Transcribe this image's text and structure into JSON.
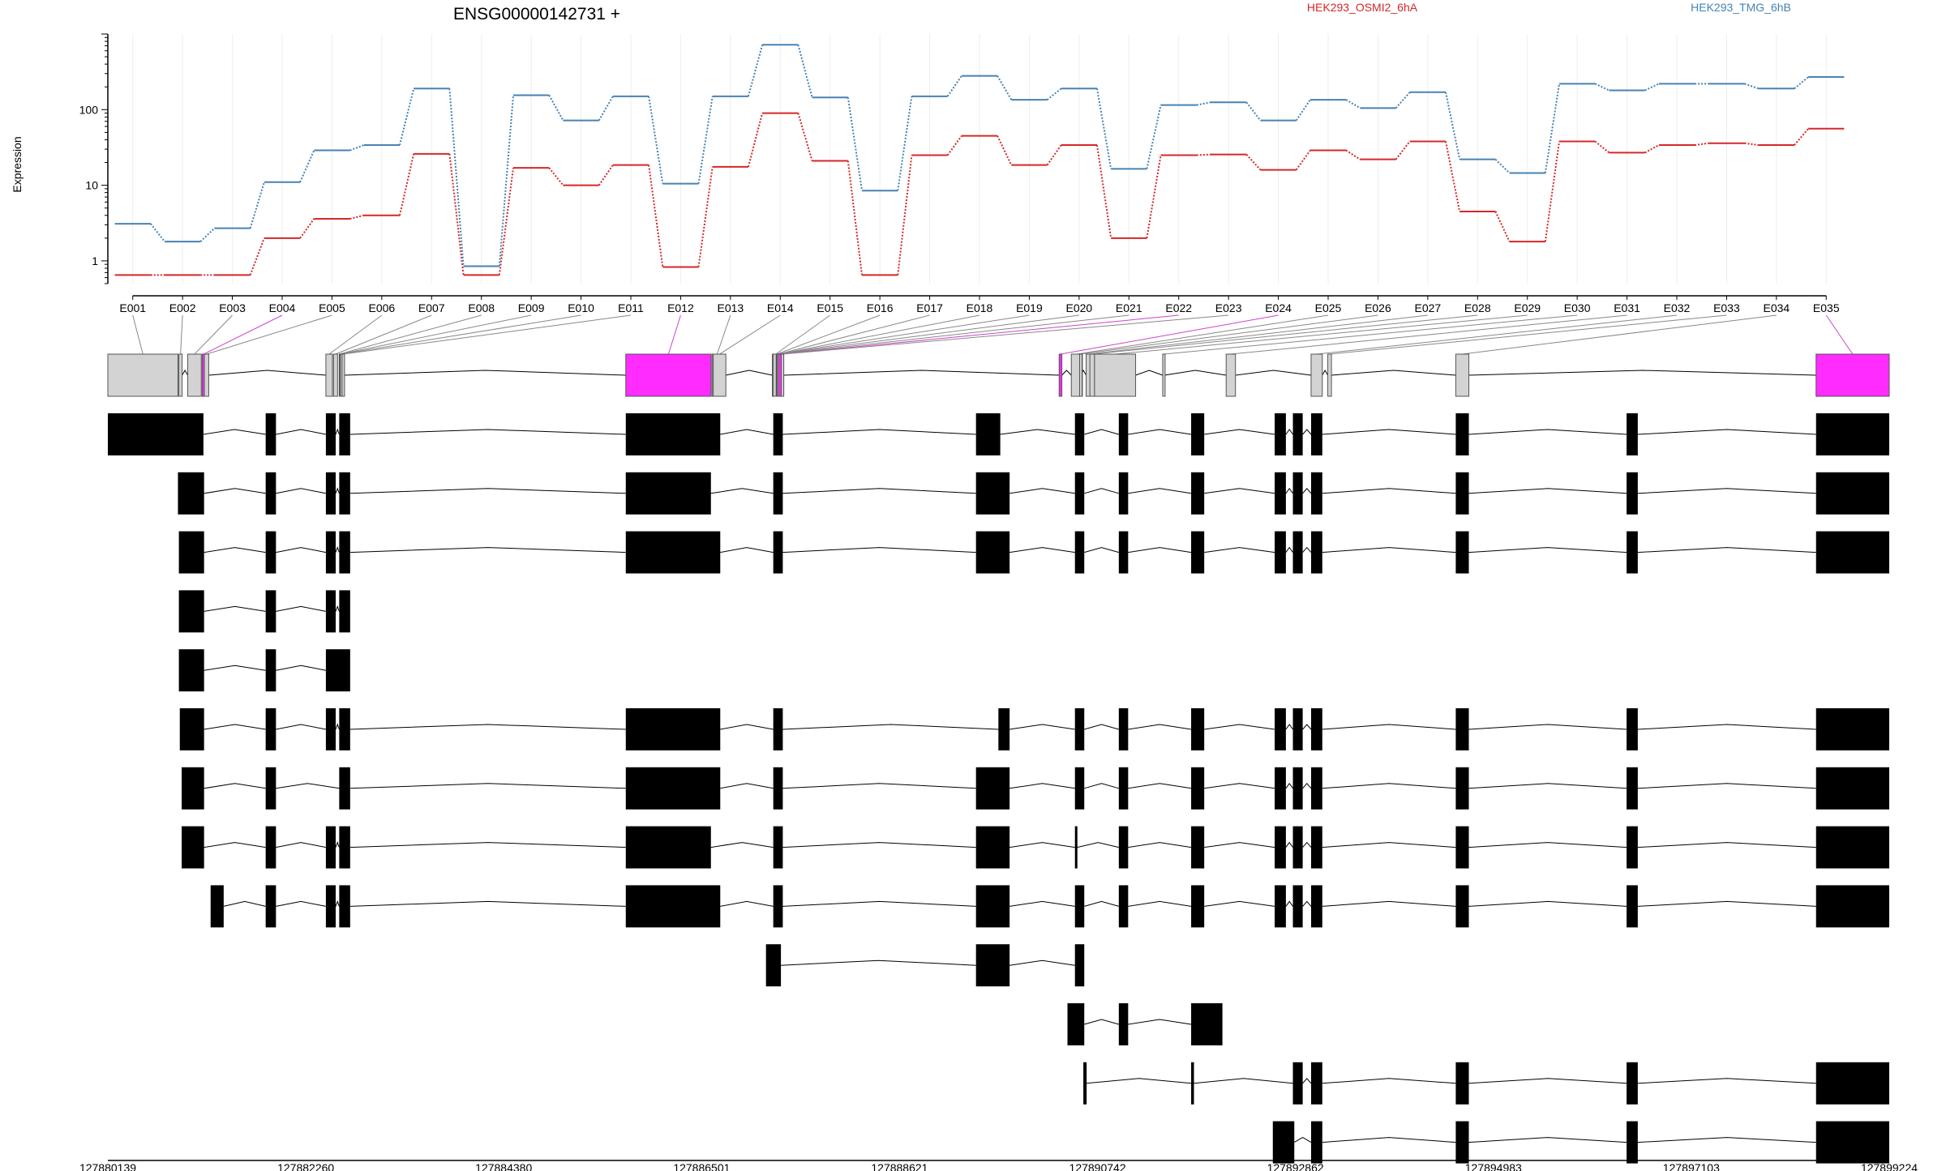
{
  "chart_data": {
    "type": "line",
    "title": "ENSG00000142731 +",
    "ylabel": "Expression",
    "yscale": "log",
    "ylim": [
      0.5,
      1000
    ],
    "yticks": [
      "1",
      "10",
      "100"
    ],
    "grid": true,
    "legend_position": "top",
    "x": [
      "E001",
      "E002",
      "E003",
      "E004",
      "E005",
      "E006",
      "E007",
      "E008",
      "E009",
      "E010",
      "E011",
      "E012",
      "E013",
      "E014",
      "E015",
      "E016",
      "E017",
      "E018",
      "E019",
      "E020",
      "E021",
      "E022",
      "E023",
      "E024",
      "E025",
      "E026",
      "E027",
      "E028",
      "E029",
      "E030",
      "E031",
      "E032",
      "E033",
      "E034",
      "E035"
    ],
    "series": [
      {
        "name": "HEK293_OSMI2_6hA",
        "color": "#d62728",
        "values": [
          0.65,
          0.65,
          0.65,
          2.0,
          3.6,
          4.0,
          26,
          0.65,
          17,
          10,
          18.5,
          0.83,
          17.5,
          90,
          21,
          0.65,
          25,
          45,
          18.5,
          34,
          2.0,
          25,
          25.5,
          16,
          29,
          22,
          38,
          4.5,
          1.8,
          38,
          27,
          34,
          36,
          34,
          56
        ]
      },
      {
        "name": "HEK293_TMG_6hB",
        "color": "#4682b4",
        "values": [
          3.1,
          1.8,
          2.7,
          11,
          29,
          34,
          190,
          0.85,
          155,
          72,
          150,
          10.5,
          150,
          720,
          145,
          8.5,
          150,
          280,
          135,
          190,
          16.5,
          115,
          125,
          72,
          135,
          105,
          170,
          22,
          14.5,
          220,
          180,
          220,
          220,
          190,
          270
        ]
      }
    ],
    "exons": {
      "labels": [
        "E001",
        "E002",
        "E003",
        "E004",
        "E005",
        "E006",
        "E007",
        "E008",
        "E009",
        "E010",
        "E011",
        "E012",
        "E013",
        "E014",
        "E015",
        "E016",
        "E017",
        "E018",
        "E019",
        "E020",
        "E021",
        "E022",
        "E023",
        "E024",
        "E025",
        "E026",
        "E027",
        "E028",
        "E029",
        "E030",
        "E031",
        "E032",
        "E033",
        "E034",
        "E035"
      ],
      "starts": [
        127880139,
        127880900,
        127880995,
        127881150,
        127881173,
        127882475,
        127882557,
        127882618,
        127882623,
        127882631,
        127882649,
        127885688,
        127886613,
        127886625,
        127887258,
        127887268,
        127887299,
        127887302,
        127887308,
        127887308,
        127887310,
        127887323,
        127887354,
        127890331,
        127890461,
        127890550,
        127890620,
        127890660,
        127890710,
        127891440,
        127892120,
        127893030,
        127893209,
        127894580,
        127898440
      ],
      "ends": [
        127880890,
        127880935,
        127881140,
        127881180,
        127881220,
        127882545,
        127882600,
        127882620,
        127882625,
        127882640,
        127882670,
        127886602,
        127886720,
        127886760,
        127887330,
        127887345,
        127887345,
        127887345,
        127887310,
        127887315,
        127887350,
        127887380,
        127887380,
        127890360,
        127890580,
        127890560,
        127890680,
        127890710,
        127891150,
        127891460,
        127892220,
        127893150,
        127893248,
        127894720,
        127899224
      ],
      "highlight": [
        false,
        false,
        false,
        true,
        false,
        false,
        false,
        false,
        false,
        false,
        false,
        true,
        false,
        false,
        false,
        false,
        false,
        false,
        false,
        false,
        false,
        true,
        false,
        true,
        false,
        false,
        false,
        false,
        false,
        false,
        false,
        false,
        false,
        false,
        true
      ],
      "flat_color": "#d3d3d3",
      "highlight_color": "#ff2bff"
    },
    "transcripts": [
      [
        [
          127880139,
          127881163
        ],
        [
          127881830,
          127881940
        ],
        [
          127882475,
          127882580
        ],
        [
          127882618,
          127882735
        ],
        [
          127885688,
          127886700
        ],
        [
          127887268,
          127887370
        ],
        [
          127889440,
          127889700
        ],
        [
          127890500,
          127890600
        ],
        [
          127890970,
          127891070
        ],
        [
          127891745,
          127891885
        ],
        [
          127892640,
          127892760
        ],
        [
          127892835,
          127892940
        ],
        [
          127893030,
          127893150
        ],
        [
          127894580,
          127894720
        ],
        [
          127896410,
          127896530
        ],
        [
          127898440,
          127899224
        ]
      ],
      [
        [
          127880890,
          127881170
        ],
        [
          127881830,
          127881940
        ],
        [
          127882475,
          127882580
        ],
        [
          127882618,
          127882735
        ],
        [
          127885688,
          127886600
        ],
        [
          127887268,
          127887370
        ],
        [
          127889440,
          127889800
        ],
        [
          127890500,
          127890600
        ],
        [
          127890970,
          127891070
        ],
        [
          127891745,
          127891885
        ],
        [
          127892640,
          127892760
        ],
        [
          127892835,
          127892940
        ],
        [
          127893030,
          127893150
        ],
        [
          127894580,
          127894720
        ],
        [
          127896410,
          127896530
        ],
        [
          127898440,
          127899224
        ]
      ],
      [
        [
          127880900,
          127881170
        ],
        [
          127881830,
          127881940
        ],
        [
          127882475,
          127882580
        ],
        [
          127882618,
          127882735
        ],
        [
          127885688,
          127886700
        ],
        [
          127887268,
          127887370
        ],
        [
          127889440,
          127889800
        ],
        [
          127890500,
          127890600
        ],
        [
          127890970,
          127891070
        ],
        [
          127891745,
          127891885
        ],
        [
          127892640,
          127892760
        ],
        [
          127892835,
          127892940
        ],
        [
          127893030,
          127893150
        ],
        [
          127894580,
          127894720
        ],
        [
          127896410,
          127896530
        ],
        [
          127898440,
          127899224
        ]
      ],
      [
        [
          127880900,
          127881170
        ],
        [
          127881830,
          127881940
        ],
        [
          127882475,
          127882580
        ],
        [
          127882618,
          127882735
        ]
      ],
      [
        [
          127880900,
          127881170
        ],
        [
          127881830,
          127881940
        ],
        [
          127882475,
          127882735
        ]
      ],
      [
        [
          127880910,
          127881170
        ],
        [
          127881830,
          127881940
        ],
        [
          127882475,
          127882580
        ],
        [
          127882618,
          127882735
        ],
        [
          127885688,
          127886700
        ],
        [
          127887268,
          127887370
        ],
        [
          127889680,
          127889800
        ],
        [
          127890500,
          127890600
        ],
        [
          127890970,
          127891070
        ],
        [
          127891745,
          127891885
        ],
        [
          127892640,
          127892760
        ],
        [
          127892835,
          127892940
        ],
        [
          127893030,
          127893150
        ],
        [
          127894580,
          127894720
        ],
        [
          127896410,
          127896530
        ],
        [
          127898440,
          127899224
        ]
      ],
      [
        [
          127880930,
          127881170
        ],
        [
          127881830,
          127881940
        ],
        [
          127882618,
          127882735
        ],
        [
          127885688,
          127886700
        ],
        [
          127887268,
          127887370
        ],
        [
          127889440,
          127889800
        ],
        [
          127890500,
          127890600
        ],
        [
          127890970,
          127891070
        ],
        [
          127891745,
          127891885
        ],
        [
          127892640,
          127892760
        ],
        [
          127892835,
          127892940
        ],
        [
          127893030,
          127893150
        ],
        [
          127894580,
          127894720
        ],
        [
          127896410,
          127896530
        ],
        [
          127898440,
          127899224
        ]
      ],
      [
        [
          127880930,
          127881170
        ],
        [
          127881830,
          127881940
        ],
        [
          127882475,
          127882580
        ],
        [
          127882618,
          127882735
        ],
        [
          127885688,
          127886600
        ],
        [
          127887268,
          127887370
        ],
        [
          127889440,
          127889800
        ],
        [
          127890500,
          127890525
        ],
        [
          127890970,
          127891070
        ],
        [
          127891745,
          127891885
        ],
        [
          127892640,
          127892760
        ],
        [
          127892835,
          127892940
        ],
        [
          127893030,
          127893150
        ],
        [
          127894580,
          127894720
        ],
        [
          127896410,
          127896530
        ],
        [
          127898440,
          127899224
        ]
      ],
      [
        [
          127881240,
          127881380
        ],
        [
          127881830,
          127881940
        ],
        [
          127882475,
          127882580
        ],
        [
          127882618,
          127882735
        ],
        [
          127885688,
          127886700
        ],
        [
          127887268,
          127887370
        ],
        [
          127889440,
          127889800
        ],
        [
          127890500,
          127890600
        ],
        [
          127890970,
          127891070
        ],
        [
          127891745,
          127891885
        ],
        [
          127892640,
          127892760
        ],
        [
          127892835,
          127892940
        ],
        [
          127893030,
          127893150
        ],
        [
          127894580,
          127894720
        ],
        [
          127896410,
          127896530
        ],
        [
          127898440,
          127899224
        ]
      ],
      [
        [
          127887190,
          127887350
        ],
        [
          127889440,
          127889800
        ],
        [
          127890500,
          127890600
        ]
      ],
      [
        [
          127890420,
          127890600
        ],
        [
          127890970,
          127891070
        ],
        [
          127891745,
          127892080
        ]
      ],
      [
        [
          127890590,
          127890625
        ],
        [
          127891745,
          127891775
        ],
        [
          127892835,
          127892940
        ],
        [
          127893030,
          127893150
        ],
        [
          127894580,
          127894720
        ],
        [
          127896410,
          127896530
        ],
        [
          127898440,
          127899224
        ]
      ],
      [
        [
          127892620,
          127892850
        ],
        [
          127893030,
          127893150
        ],
        [
          127894580,
          127894720
        ],
        [
          127896410,
          127896530
        ],
        [
          127898440,
          127899224
        ]
      ]
    ],
    "genome_range": [
      127880139,
      127899224
    ],
    "genome_ticks": [
      "127880139",
      "127882260",
      "127884380",
      "127886501",
      "127888621",
      "127890742",
      "127892862",
      "127894983",
      "127897103",
      "127899224"
    ]
  }
}
